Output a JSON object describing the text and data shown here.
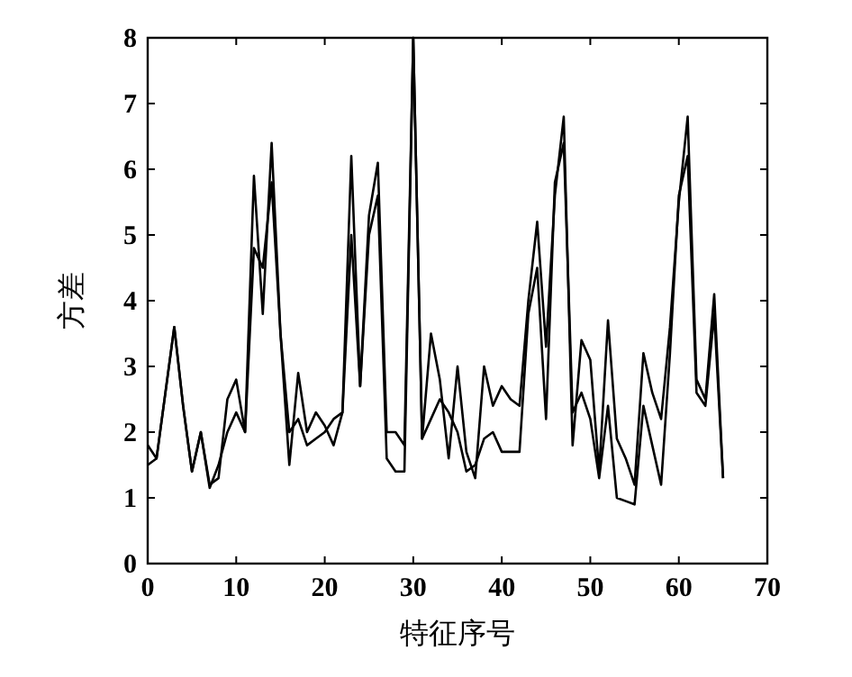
{
  "chart_data": {
    "type": "line",
    "xlabel": "特征序号",
    "ylabel": "方差",
    "x": [
      0,
      1,
      2,
      3,
      4,
      5,
      6,
      7,
      8,
      9,
      10,
      11,
      12,
      13,
      14,
      15,
      16,
      17,
      18,
      19,
      20,
      21,
      22,
      23,
      24,
      25,
      26,
      27,
      28,
      29,
      30,
      31,
      32,
      33,
      34,
      35,
      36,
      37,
      38,
      39,
      40,
      41,
      42,
      43,
      44,
      45,
      46,
      47,
      48,
      49,
      50,
      51,
      52,
      53,
      54,
      55,
      56,
      57,
      58,
      59,
      60,
      61,
      62,
      63,
      64,
      65
    ],
    "series": [
      {
        "color": "#000000",
        "values": [
          1.8,
          1.6,
          2.6,
          3.6,
          2.4,
          1.4,
          2.0,
          1.2,
          1.3,
          2.5,
          2.8,
          2.0,
          5.9,
          3.8,
          6.4,
          3.5,
          1.5,
          2.9,
          2.0,
          2.3,
          2.1,
          1.8,
          2.3,
          6.2,
          2.7,
          5.3,
          6.1,
          2.0,
          2.0,
          1.8,
          8.0,
          1.9,
          3.5,
          2.8,
          1.6,
          3.0,
          1.7,
          1.3,
          3.0,
          2.4,
          2.7,
          2.5,
          2.4,
          4.0,
          5.2,
          3.3,
          5.6,
          6.8,
          1.8,
          3.4,
          3.1,
          1.4,
          3.7,
          1.9,
          1.6,
          1.2,
          3.2,
          2.6,
          2.2,
          3.6,
          5.5,
          6.8,
          2.8,
          2.5,
          4.1,
          1.3
        ]
      },
      {
        "color": "#000000",
        "values": [
          1.5,
          1.6,
          2.6,
          3.6,
          2.4,
          1.4,
          2.0,
          1.15,
          1.5,
          2.0,
          2.3,
          2.0,
          4.8,
          4.5,
          5.8,
          3.5,
          2.0,
          2.2,
          1.8,
          1.9,
          2.0,
          2.2,
          2.3,
          5.0,
          2.7,
          5.0,
          5.6,
          1.6,
          1.4,
          1.4,
          8.0,
          1.9,
          2.2,
          2.5,
          2.3,
          2.0,
          1.4,
          1.5,
          1.9,
          2.0,
          1.7,
          1.7,
          1.7,
          3.8,
          4.5,
          2.2,
          5.8,
          6.4,
          2.3,
          2.6,
          2.2,
          1.3,
          2.4,
          1.0,
          0.95,
          0.9,
          2.4,
          1.8,
          1.2,
          3.2,
          5.6,
          6.2,
          2.6,
          2.4,
          3.8,
          1.3
        ]
      }
    ],
    "xlim": [
      0,
      70
    ],
    "ylim": [
      0,
      8
    ],
    "xticks": [
      0,
      10,
      20,
      30,
      40,
      50,
      60,
      70
    ],
    "yticks": [
      0,
      1,
      2,
      3,
      4,
      5,
      6,
      7,
      8
    ],
    "grid": false
  }
}
